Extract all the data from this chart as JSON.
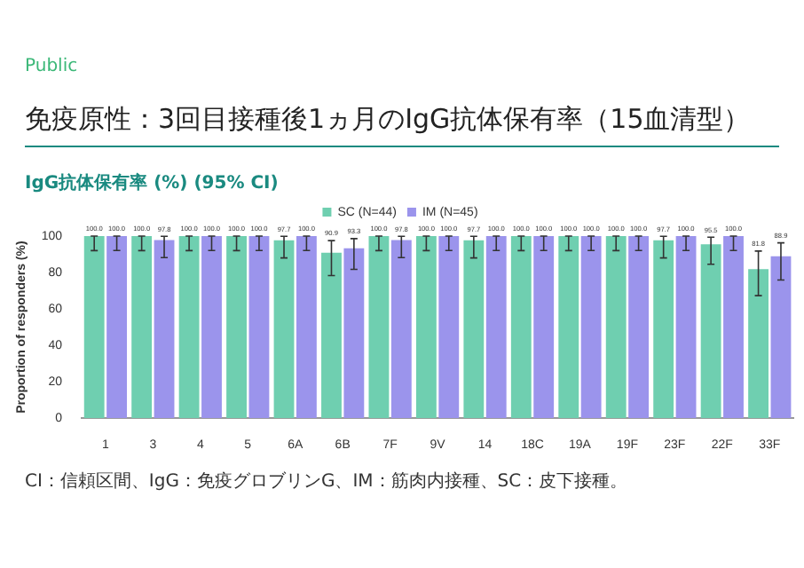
{
  "chart_data": {
    "type": "bar",
    "title": "免疫原性：3回目接種後1ヵ月のIgG抗体保有率（15血清型）",
    "subtitle": "IgG抗体保有率 (%) (95% CI)",
    "ylabel": "Proportion of responders (%)",
    "categories": [
      "1",
      "3",
      "4",
      "5",
      "6A",
      "6B",
      "7F",
      "9V",
      "14",
      "18C",
      "19A",
      "19F",
      "23F",
      "22F",
      "33F"
    ],
    "series": [
      {
        "name": "SC (N=44)",
        "color": "#6fcfb0",
        "values": [
          100,
          100,
          100,
          100,
          97.7,
          90.9,
          100,
          100,
          97.7,
          100,
          100,
          100,
          97.7,
          95.5,
          81.8
        ],
        "errors": [
          [
            92,
            100
          ],
          [
            92,
            100
          ],
          [
            92,
            100
          ],
          [
            92,
            100
          ],
          [
            88,
            99.9
          ],
          [
            78.3,
            97.5
          ],
          [
            92,
            100
          ],
          [
            92,
            100
          ],
          [
            88,
            99.9
          ],
          [
            92,
            100
          ],
          [
            92,
            100
          ],
          [
            92,
            100
          ],
          [
            88,
            99.9
          ],
          [
            84.5,
            99.4
          ],
          [
            67.3,
            91.8
          ]
        ],
        "value_labels": [
          "100.0",
          "100.0",
          "100.0",
          "100.0",
          "97.7",
          "90.9",
          "100.0",
          "100.0",
          "97.7",
          "100.0",
          "100.0",
          "100.0",
          "97.7",
          "95.5",
          "81.8"
        ]
      },
      {
        "name": "IM (N=45)",
        "color": "#9b94ec",
        "values": [
          100,
          97.8,
          100,
          100,
          100,
          93.3,
          97.8,
          100,
          100,
          100,
          100,
          100,
          100,
          100,
          88.9
        ],
        "errors": [
          [
            92.1,
            100
          ],
          [
            88.2,
            99.9
          ],
          [
            92.1,
            100
          ],
          [
            92.1,
            100
          ],
          [
            92.1,
            100
          ],
          [
            81.7,
            98.6
          ],
          [
            88.2,
            99.9
          ],
          [
            92.1,
            100
          ],
          [
            92.1,
            100
          ],
          [
            92.1,
            100
          ],
          [
            92.1,
            100
          ],
          [
            92.1,
            100
          ],
          [
            92.1,
            100
          ],
          [
            92.1,
            100
          ],
          [
            75.9,
            96.3
          ]
        ],
        "value_labels": [
          "100.0",
          "97.8",
          "100.0",
          "100.0",
          "100.0",
          "93.3",
          "97.8",
          "100.0",
          "100.0",
          "100.0",
          "100.0",
          "100.0",
          "100.0",
          "100.0",
          "88.9"
        ]
      }
    ],
    "ylim": [
      0,
      100
    ],
    "yticks": [
      0,
      20,
      40,
      60,
      80,
      100
    ],
    "legend": "top",
    "grid": false,
    "annotations": [
      "Public",
      "CI：信頼区間、IgG：免疫グロブリンG、IM：筋肉内接種、SC：皮下接種。"
    ]
  }
}
